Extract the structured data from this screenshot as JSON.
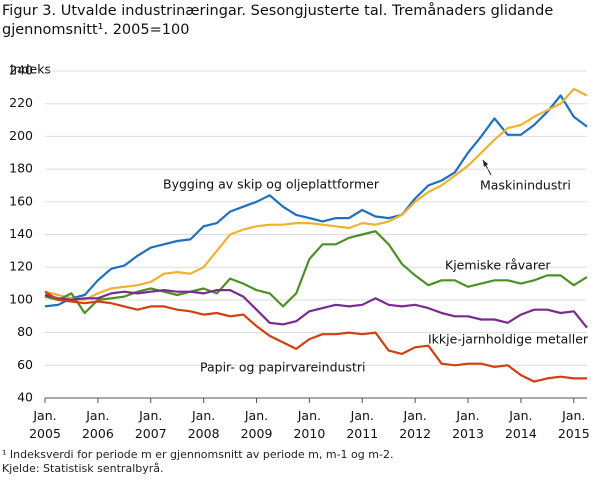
{
  "chart_data": {
    "type": "line",
    "title": "Figur 3. Utvalde industrinæringar. Sesongjusterte tal. Tremånaders glidande gjennomsnitt¹. 2005=100",
    "y_label": "Indeks",
    "footnote": "¹ Indeksverdi for periode m er gjennomsnitt av periode m, m-1 og m-2.",
    "source": "Kjelde: Statistisk sentralbyrå.",
    "x": [
      "2005-01",
      "2005-04",
      "2005-07",
      "2005-10",
      "2006-01",
      "2006-04",
      "2006-07",
      "2006-10",
      "2007-01",
      "2007-04",
      "2007-07",
      "2007-10",
      "2008-01",
      "2008-04",
      "2008-07",
      "2008-10",
      "2009-01",
      "2009-04",
      "2009-07",
      "2009-10",
      "2010-01",
      "2010-04",
      "2010-07",
      "2010-10",
      "2011-01",
      "2011-04",
      "2011-07",
      "2011-10",
      "2012-01",
      "2012-04",
      "2012-07",
      "2012-10",
      "2013-01",
      "2013-04",
      "2013-07",
      "2013-10",
      "2014-01",
      "2014-04",
      "2014-07",
      "2014-10",
      "2015-01",
      "2015-04"
    ],
    "xticks": [
      {
        "value": "2005-01",
        "label": "Jan. 2005"
      },
      {
        "value": "2006-01",
        "label": "Jan. 2006"
      },
      {
        "value": "2007-01",
        "label": "Jan. 2007"
      },
      {
        "value": "2008-01",
        "label": "Jan. 2008"
      },
      {
        "value": "2009-01",
        "label": "Jan. 2009"
      },
      {
        "value": "2010-01",
        "label": "Jan. 2010"
      },
      {
        "value": "2011-01",
        "label": "Jan. 2011"
      },
      {
        "value": "2012-01",
        "label": "Jan. 2012"
      },
      {
        "value": "2013-01",
        "label": "Jan. 2013"
      },
      {
        "value": "2014-01",
        "label": "Jan. 2014"
      },
      {
        "value": "2015-01",
        "label": "Jan. 2015"
      }
    ],
    "xlim": [
      "2005-01",
      "2015-04"
    ],
    "ylim": [
      40,
      240
    ],
    "yticks": [
      40,
      60,
      80,
      100,
      120,
      140,
      160,
      180,
      200,
      220,
      240
    ],
    "grid": true,
    "series": [
      {
        "name": "Bygging av skip og oljeplattformer",
        "color": "#1f6fbf",
        "values": [
          96,
          97,
          101,
          103,
          112,
          119,
          121,
          127,
          132,
          134,
          136,
          137,
          145,
          147,
          154,
          157,
          160,
          164,
          157,
          152,
          150,
          148,
          150,
          150,
          155,
          151,
          150,
          152,
          162,
          170,
          173,
          178,
          190,
          200,
          211,
          201,
          201,
          207,
          215,
          225,
          212,
          206
        ]
      },
      {
        "name": "Maskinindustri",
        "color": "#f0b030",
        "values": [
          105,
          103,
          101,
          100,
          104,
          107,
          108,
          109,
          111,
          116,
          117,
          116,
          120,
          130,
          140,
          143,
          145,
          146,
          146,
          147,
          147,
          146,
          145,
          144,
          147,
          146,
          148,
          152,
          160,
          166,
          170,
          176,
          182,
          190,
          198,
          205,
          207,
          212,
          216,
          220,
          229,
          225
        ]
      },
      {
        "name": "Kjemiske råvarer",
        "color": "#4e8f24",
        "values": [
          102,
          100,
          104,
          92,
          100,
          101,
          102,
          105,
          107,
          105,
          103,
          105,
          107,
          104,
          113,
          110,
          106,
          104,
          96,
          104,
          125,
          134,
          134,
          138,
          140,
          142,
          134,
          122,
          115,
          109,
          112,
          112,
          108,
          110,
          112,
          112,
          110,
          112,
          115,
          115,
          109,
          114
        ]
      },
      {
        "name": "Ikkje-jarnholdige metaller",
        "color": "#7b2a8f",
        "values": [
          103,
          101,
          100,
          101,
          101,
          104,
          105,
          104,
          105,
          106,
          105,
          105,
          104,
          106,
          106,
          102,
          94,
          86,
          85,
          87,
          93,
          95,
          97,
          96,
          97,
          101,
          97,
          96,
          97,
          95,
          92,
          90,
          90,
          88,
          88,
          86,
          91,
          94,
          94,
          92,
          93,
          83
        ]
      },
      {
        "name": "Papir- og papirvareindustri",
        "color": "#d04010",
        "values": [
          105,
          100,
          99,
          98,
          99,
          98,
          96,
          94,
          96,
          96,
          94,
          93,
          91,
          92,
          90,
          91,
          84,
          78,
          74,
          70,
          76,
          79,
          79,
          80,
          79,
          80,
          69,
          67,
          71,
          72,
          61,
          60,
          61,
          61,
          59,
          60,
          54,
          50,
          52,
          53,
          52,
          52
        ]
      }
    ]
  }
}
